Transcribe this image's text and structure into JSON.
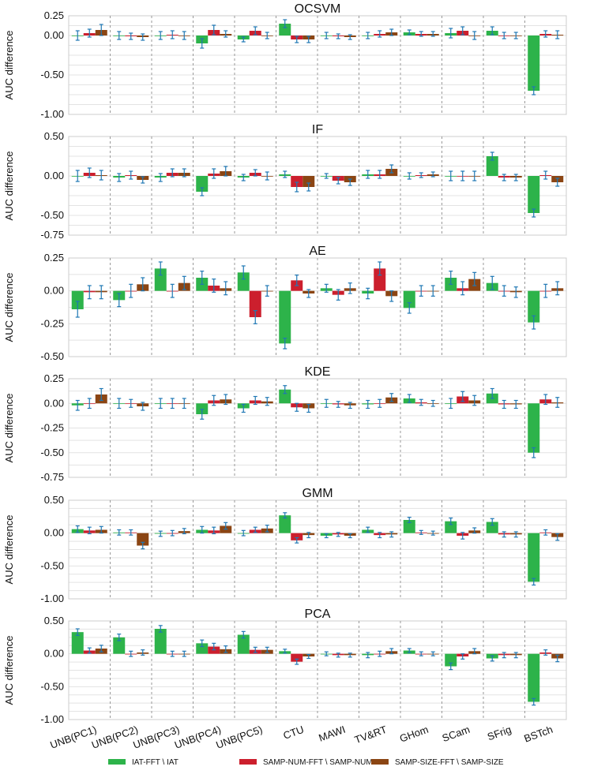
{
  "colors": {
    "iat": "#2db34a",
    "num": "#cc1f2d",
    "size": "#8b4513",
    "err": "#1f77b4",
    "grid": "#e3e3e3",
    "sep": "#999999",
    "axis": "#cccccc"
  },
  "chart_data": {
    "type": "bar",
    "categories": [
      "UNB(PC1)",
      "UNB(PC2)",
      "UNB(PC3)",
      "UNB(PC4)",
      "UNB(PC5)",
      "CTU",
      "MAWI",
      "TV&RT",
      "GHom",
      "SCam",
      "SFrig",
      "BSTch"
    ],
    "legend": [
      "IAT-FFT \\ IAT",
      "SAMP-NUM-FFT \\ SAMP-NUM",
      "SAMP-SIZE-FFT \\ SAMP-SIZE"
    ],
    "legend_position": "bottom",
    "ylabel": "AUC difference",
    "panels": [
      {
        "title": "OCSVM",
        "yticks": [
          "0.25",
          "0.00",
          "-0.50",
          "-1.00"
        ],
        "ytick_values": [
          0.25,
          0,
          -0.5,
          -1.0
        ],
        "ylim": [
          -1.0,
          0.25
        ],
        "series": [
          {
            "name": "IAT-FFT \\ IAT",
            "values": [
              0.0,
              0.0,
              0.0,
              -0.1,
              -0.05,
              0.15,
              0.0,
              0.0,
              0.04,
              0.03,
              0.06,
              -0.7
            ],
            "err": [
              0.06,
              0.05,
              0.05,
              0.06,
              0.03,
              0.05,
              0.04,
              0.04,
              0.03,
              0.06,
              0.05,
              0.05
            ]
          },
          {
            "name": "SAMP-NUM-FFT \\ SAMP-NUM",
            "values": [
              0.03,
              -0.01,
              0.01,
              0.07,
              0.06,
              -0.05,
              -0.01,
              0.02,
              0.02,
              0.06,
              0.0,
              0.02
            ],
            "err": [
              0.05,
              0.04,
              0.05,
              0.06,
              0.05,
              0.04,
              0.03,
              0.04,
              0.03,
              0.05,
              0.04,
              0.04
            ]
          },
          {
            "name": "SAMP-SIZE-FFT \\ SAMP-SIZE",
            "values": [
              0.07,
              -0.02,
              0.0,
              0.02,
              0.0,
              -0.05,
              -0.02,
              0.04,
              0.02,
              0.0,
              0.0,
              0.01
            ],
            "err": [
              0.07,
              0.04,
              0.05,
              0.04,
              0.04,
              0.04,
              0.03,
              0.04,
              0.03,
              0.05,
              0.04,
              0.05
            ]
          }
        ]
      },
      {
        "title": "IF",
        "yticks": [
          "0.50",
          "0.00",
          "-0.50",
          "-0.75"
        ],
        "ytick_values": [
          0.5,
          0,
          -0.5,
          -0.75
        ],
        "ylim": [
          -0.75,
          0.5
        ],
        "series": [
          {
            "name": "IAT-FFT \\ IAT",
            "values": [
              0.0,
              -0.02,
              -0.02,
              -0.2,
              -0.02,
              0.02,
              0.0,
              0.02,
              0.0,
              0.0,
              0.25,
              -0.47
            ],
            "err": [
              0.07,
              0.05,
              0.05,
              0.05,
              0.04,
              0.04,
              0.03,
              0.05,
              0.04,
              0.06,
              0.05,
              0.05
            ]
          },
          {
            "name": "SAMP-NUM-FFT \\ SAMP-NUM",
            "values": [
              0.04,
              0.01,
              0.04,
              0.03,
              0.04,
              -0.14,
              -0.06,
              0.02,
              0.01,
              0.0,
              -0.02,
              0.01
            ],
            "err": [
              0.06,
              0.05,
              0.05,
              0.06,
              0.04,
              0.06,
              0.04,
              0.05,
              0.03,
              0.06,
              0.04,
              0.05
            ]
          },
          {
            "name": "SAMP-SIZE-FFT \\ SAMP-SIZE",
            "values": [
              0.01,
              -0.05,
              0.04,
              0.06,
              0.0,
              -0.14,
              -0.08,
              0.09,
              0.02,
              0.0,
              -0.02,
              -0.08
            ],
            "err": [
              0.06,
              0.04,
              0.05,
              0.06,
              0.05,
              0.05,
              0.04,
              0.05,
              0.03,
              0.06,
              0.04,
              0.05
            ]
          }
        ]
      },
      {
        "title": "AE",
        "yticks": [
          "0.25",
          "0.00",
          "-0.25",
          "-0.50"
        ],
        "ytick_values": [
          0.25,
          0,
          -0.25,
          -0.5
        ],
        "ylim": [
          -0.5,
          0.25
        ],
        "series": [
          {
            "name": "IAT-FFT \\ IAT",
            "values": [
              -0.14,
              -0.07,
              0.17,
              0.1,
              0.14,
              -0.4,
              0.02,
              -0.02,
              -0.13,
              0.1,
              0.06,
              -0.24
            ],
            "err": [
              0.06,
              0.05,
              0.05,
              0.05,
              0.05,
              0.04,
              0.03,
              0.04,
              0.04,
              0.05,
              0.05,
              0.05
            ]
          },
          {
            "name": "SAMP-NUM-FFT \\ SAMP-NUM",
            "values": [
              -0.01,
              0.0,
              0.0,
              0.04,
              -0.2,
              0.08,
              -0.03,
              0.17,
              0.0,
              0.02,
              0.0,
              0.0
            ],
            "err": [
              0.05,
              0.05,
              0.05,
              0.05,
              0.05,
              0.04,
              0.04,
              0.05,
              0.04,
              0.05,
              0.04,
              0.05
            ]
          },
          {
            "name": "SAMP-SIZE-FFT \\ SAMP-SIZE",
            "values": [
              -0.01,
              0.05,
              0.06,
              0.02,
              0.0,
              -0.02,
              0.02,
              -0.04,
              0.0,
              0.09,
              -0.01,
              0.02
            ],
            "err": [
              0.05,
              0.05,
              0.05,
              0.05,
              0.04,
              0.03,
              0.04,
              0.04,
              0.04,
              0.05,
              0.04,
              0.05
            ]
          }
        ]
      },
      {
        "title": "KDE",
        "yticks": [
          "0.25",
          "0.00",
          "-0.25",
          "-0.50",
          "-0.75"
        ],
        "ytick_values": [
          0.25,
          0,
          -0.25,
          -0.5,
          -0.75
        ],
        "ylim": [
          -0.75,
          0.25
        ],
        "series": [
          {
            "name": "IAT-FFT \\ IAT",
            "values": [
              -0.02,
              0.0,
              0.0,
              -0.11,
              -0.05,
              0.14,
              0.0,
              -0.01,
              0.05,
              0.0,
              0.1,
              -0.5
            ],
            "err": [
              0.05,
              0.05,
              0.05,
              0.05,
              0.04,
              0.04,
              0.04,
              0.04,
              0.04,
              0.05,
              0.05,
              0.05
            ]
          },
          {
            "name": "SAMP-NUM-FFT \\ SAMP-NUM",
            "values": [
              0.0,
              0.0,
              0.0,
              0.03,
              0.03,
              -0.04,
              -0.01,
              0.0,
              0.01,
              0.07,
              -0.01,
              0.04
            ],
            "err": [
              0.05,
              0.04,
              0.05,
              0.05,
              0.04,
              0.04,
              0.03,
              0.04,
              0.03,
              0.05,
              0.04,
              0.05
            ]
          },
          {
            "name": "SAMP-SIZE-FFT \\ SAMP-SIZE",
            "values": [
              0.09,
              -0.03,
              0.0,
              0.04,
              0.02,
              -0.05,
              -0.02,
              0.06,
              0.0,
              0.03,
              -0.01,
              0.01
            ],
            "err": [
              0.06,
              0.04,
              0.05,
              0.05,
              0.04,
              0.04,
              0.03,
              0.04,
              0.03,
              0.05,
              0.04,
              0.05
            ]
          }
        ]
      },
      {
        "title": "GMM",
        "yticks": [
          "0.50",
          "0.00",
          "-0.50",
          "-1.00"
        ],
        "ytick_values": [
          0.5,
          0,
          -0.5,
          -1.0
        ],
        "ylim": [
          -1.0,
          0.5
        ],
        "series": [
          {
            "name": "IAT-FFT \\ IAT",
            "values": [
              0.06,
              0.01,
              -0.01,
              0.05,
              0.0,
              0.27,
              -0.04,
              0.05,
              0.2,
              0.18,
              0.17,
              -0.74
            ],
            "err": [
              0.05,
              0.04,
              0.04,
              0.05,
              0.04,
              0.04,
              0.03,
              0.04,
              0.04,
              0.05,
              0.05,
              0.05
            ]
          },
          {
            "name": "SAMP-NUM-FFT \\ SAMP-NUM",
            "values": [
              0.04,
              0.01,
              0.0,
              0.04,
              0.05,
              -0.11,
              -0.02,
              -0.03,
              0.01,
              -0.04,
              -0.02,
              0.01
            ],
            "err": [
              0.05,
              0.04,
              0.04,
              0.05,
              0.04,
              0.04,
              0.03,
              0.04,
              0.03,
              0.05,
              0.04,
              0.04
            ]
          },
          {
            "name": "SAMP-SIZE-FFT \\ SAMP-SIZE",
            "values": [
              0.05,
              -0.19,
              0.03,
              0.11,
              0.07,
              -0.03,
              -0.04,
              -0.02,
              0.0,
              0.04,
              -0.02,
              -0.06
            ],
            "err": [
              0.05,
              0.05,
              0.04,
              0.05,
              0.05,
              0.04,
              0.03,
              0.04,
              0.03,
              0.04,
              0.04,
              0.05
            ]
          }
        ]
      },
      {
        "title": "PCA",
        "yticks": [
          "0.50",
          "0.00",
          "-0.50",
          "-1.00"
        ],
        "ytick_values": [
          0.5,
          0,
          -0.5,
          -1.0
        ],
        "ylim": [
          -1.0,
          0.5
        ],
        "series": [
          {
            "name": "IAT-FFT \\ IAT",
            "values": [
              0.33,
              0.25,
              0.38,
              0.16,
              0.29,
              0.04,
              0.0,
              -0.02,
              0.05,
              -0.19,
              -0.07,
              -0.73
            ],
            "err": [
              0.05,
              0.05,
              0.05,
              0.05,
              0.05,
              0.03,
              0.03,
              0.04,
              0.03,
              0.05,
              0.04,
              0.05
            ]
          },
          {
            "name": "SAMP-NUM-FFT \\ SAMP-NUM",
            "values": [
              0.05,
              0.0,
              0.0,
              0.11,
              0.06,
              -0.12,
              -0.02,
              0.0,
              0.0,
              -0.04,
              -0.02,
              0.02
            ],
            "err": [
              0.04,
              0.04,
              0.04,
              0.05,
              0.04,
              0.04,
              0.03,
              0.04,
              0.03,
              0.04,
              0.04,
              0.04
            ]
          },
          {
            "name": "SAMP-SIZE-FFT \\ SAMP-SIZE",
            "values": [
              0.08,
              0.02,
              0.0,
              0.07,
              0.06,
              -0.04,
              -0.02,
              0.04,
              0.0,
              0.04,
              -0.02,
              -0.07
            ],
            "err": [
              0.05,
              0.04,
              0.04,
              0.05,
              0.04,
              0.03,
              0.03,
              0.04,
              0.03,
              0.04,
              0.04,
              0.05
            ]
          }
        ]
      }
    ]
  }
}
